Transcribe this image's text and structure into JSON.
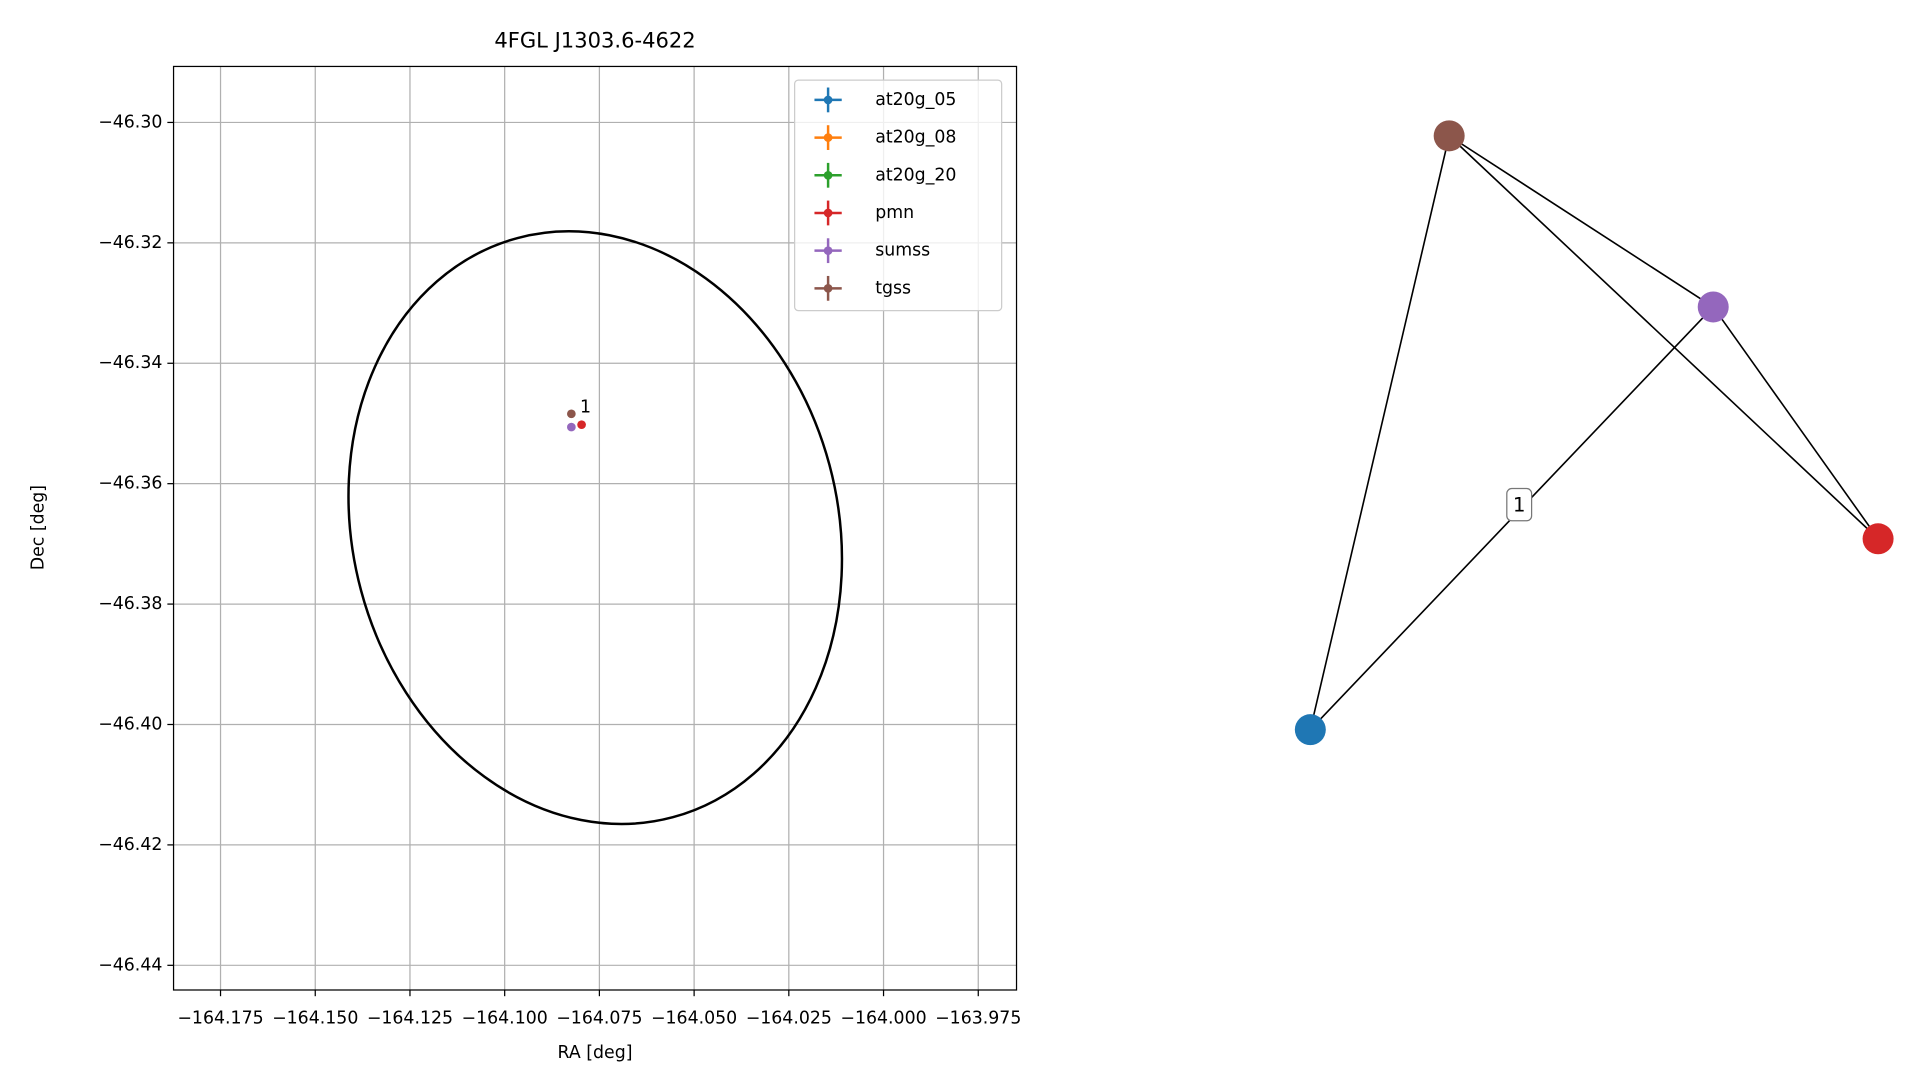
{
  "chart_data": [
    {
      "type": "scatter",
      "title": "4FGL J1303.6-4622",
      "xlabel": "RA [deg]",
      "ylabel": "Dec [deg]",
      "xlim": [
        -164.1874,
        -163.9649
      ],
      "ylim": [
        -46.4441,
        -46.2907
      ],
      "xticks": [
        {
          "value": -164.175,
          "label": "−164.175"
        },
        {
          "value": -164.15,
          "label": "−164.150"
        },
        {
          "value": -164.125,
          "label": "−164.125"
        },
        {
          "value": -164.1,
          "label": "−164.100"
        },
        {
          "value": -164.075,
          "label": "−164.075"
        },
        {
          "value": -164.05,
          "label": "−164.050"
        },
        {
          "value": -164.025,
          "label": "−164.025"
        },
        {
          "value": -164.0,
          "label": "−164.000"
        },
        {
          "value": -163.975,
          "label": "−163.975"
        }
      ],
      "yticks": [
        {
          "value": -46.3,
          "label": "−46.30"
        },
        {
          "value": -46.32,
          "label": "−46.32"
        },
        {
          "value": -46.34,
          "label": "−46.34"
        },
        {
          "value": -46.36,
          "label": "−46.36"
        },
        {
          "value": -46.38,
          "label": "−46.38"
        },
        {
          "value": -46.4,
          "label": "−46.40"
        },
        {
          "value": -46.42,
          "label": "−46.42"
        },
        {
          "value": -46.44,
          "label": "−46.44"
        }
      ],
      "grid": true,
      "legend": "upper right",
      "series": [
        {
          "name": "at20g_05",
          "color": "#1f77b4",
          "x": [],
          "y": []
        },
        {
          "name": "at20g_08",
          "color": "#ff7f0e",
          "x": [],
          "y": []
        },
        {
          "name": "at20g_20",
          "color": "#2ca02c",
          "x": [],
          "y": []
        },
        {
          "name": "pmn",
          "color": "#d62728",
          "x": [
            -164.0797
          ],
          "y": [
            -46.3502
          ]
        },
        {
          "name": "sumss",
          "color": "#9467bd",
          "x": [
            -164.0824
          ],
          "y": [
            -46.3506
          ]
        },
        {
          "name": "tgss",
          "color": "#8c564b",
          "x": [
            -164.0824
          ],
          "y": [
            -46.3484
          ]
        }
      ],
      "annotation": "1",
      "ellipse": {
        "center_x": -164.0761,
        "center_y": -46.3673,
        "semi_x": 0.064,
        "semi_y": 0.0498,
        "angle": -15,
        "color": "#000000"
      }
    },
    {
      "type": "network",
      "nodes": [
        {
          "color": "#1f77b4"
        },
        {
          "color": "#8c564b"
        },
        {
          "color": "#9467bd"
        },
        {
          "color": "#d62728"
        }
      ],
      "edges": [
        {
          "source": 1,
          "target": 0
        },
        {
          "source": 1,
          "target": 2
        },
        {
          "source": 1,
          "target": 3
        },
        {
          "source": 2,
          "target": 0,
          "label": "1"
        },
        {
          "source": 2,
          "target": 3
        }
      ]
    }
  ]
}
